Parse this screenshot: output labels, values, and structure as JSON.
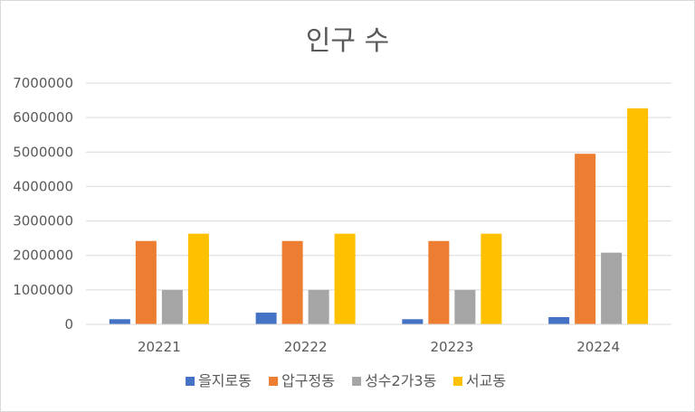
{
  "chart_data": {
    "type": "bar",
    "title": "인구 수",
    "xlabel": "",
    "ylabel": "",
    "categories": [
      "20221",
      "20222",
      "20223",
      "20224"
    ],
    "ylim": [
      0,
      7000000
    ],
    "yticks": [
      0,
      1000000,
      2000000,
      3000000,
      4000000,
      5000000,
      6000000,
      7000000
    ],
    "ytick_labels": [
      "0",
      "1000000",
      "2000000",
      "3000000",
      "4000000",
      "5000000",
      "6000000",
      "7000000"
    ],
    "grid": true,
    "legend_position": "bottom",
    "series": [
      {
        "name": "을지로동",
        "color": "#4472C4",
        "values": [
          150000,
          340000,
          150000,
          210000
        ]
      },
      {
        "name": "압구정동",
        "color": "#ED7D31",
        "values": [
          2420000,
          2420000,
          2420000,
          4950000
        ]
      },
      {
        "name": "성수2가3동",
        "color": "#A5A5A5",
        "values": [
          1000000,
          1000000,
          1000000,
          2080000
        ]
      },
      {
        "name": "서교동",
        "color": "#FFC000",
        "values": [
          2630000,
          2630000,
          2630000,
          6270000
        ]
      }
    ]
  }
}
